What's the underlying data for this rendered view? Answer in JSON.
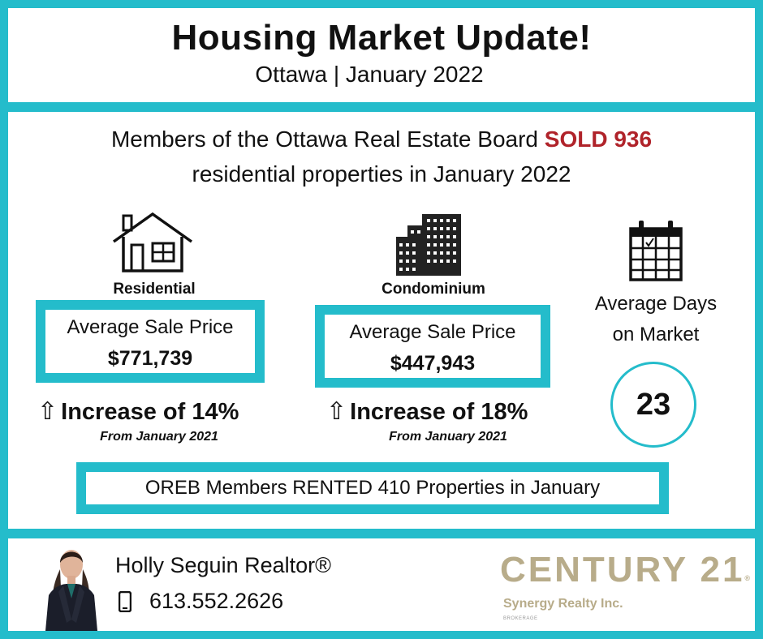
{
  "header": {
    "title": "Housing Market Update!",
    "subtitle": "Ottawa | January 2022"
  },
  "summary": {
    "line1_prefix": "Members of the Ottawa Real Estate Board ",
    "sold_label": "SOLD  936",
    "line2": "residential properties in January 2022"
  },
  "residential": {
    "icon": "house-icon",
    "label": "Residential",
    "price_label": "Average Sale Price",
    "price_value": "$771,739",
    "arrow": "⇧",
    "increase": "Increase of 14%",
    "from": "From January 2021"
  },
  "condominium": {
    "icon": "building-icon",
    "label": "Condominium",
    "price_label": "Average Sale Price",
    "price_value": "$447,943",
    "arrow": "⇧",
    "increase": "Increase of 18%",
    "from": "From January 2021"
  },
  "days_on_market": {
    "icon": "calendar-icon",
    "label_line1": "Average Days",
    "label_line2": "on  Market",
    "value": "23"
  },
  "rentals": {
    "text": "OREB Members RENTED 410 Properties in January"
  },
  "agent": {
    "name": "Holly Seguin Realtor®",
    "phone": "613.552.2626",
    "phone_icon": "phone-icon"
  },
  "brand": {
    "name": "CENTURY 21",
    "registered": "®",
    "brokerage": "Synergy Realty Inc.",
    "brokerage_sub": "BROKERAGE"
  },
  "colors": {
    "accent": "#24bccb",
    "sold": "#b0232a",
    "brand_gold": "#b8ac8a"
  }
}
